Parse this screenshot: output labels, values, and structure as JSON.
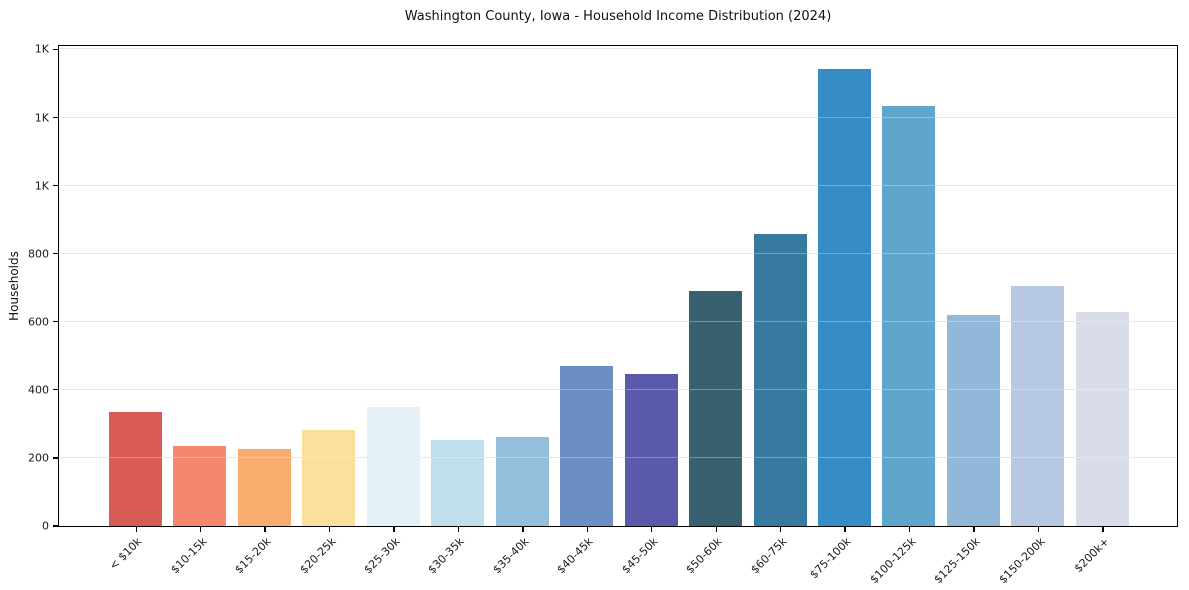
{
  "chart_data": {
    "type": "bar",
    "title": "Washington County, Iowa - Household Income Distribution (2024)",
    "xlabel": "",
    "ylabel": "Households",
    "categories": [
      "< $10k",
      "$10-15k",
      "$15-20k",
      "$20-25k",
      "$25-30k",
      "$30-35k",
      "$35-40k",
      "$40-45k",
      "$45-50k",
      "$50-60k",
      "$60-75k",
      "$75-100k",
      "$100-125k",
      "$125-150k",
      "$150-200k",
      "$200k+"
    ],
    "values": [
      336,
      235,
      226,
      281,
      349,
      252,
      261,
      471,
      448,
      690,
      857,
      1343,
      1235,
      620,
      705,
      628
    ],
    "bar_colors": [
      "#d85c55",
      "#f4886e",
      "#f8ad6f",
      "#fbdf9b",
      "#e3f0f6",
      "#c0dfec",
      "#93bfdd",
      "#6b8fc3",
      "#5a59aa",
      "#38606f",
      "#38799f",
      "#368dc5",
      "#5fa6cd",
      "#92b8d9",
      "#b7c9e2",
      "#d9dce9"
    ],
    "ylim": [
      0,
      1410
    ],
    "yticks": {
      "values": [
        0,
        200,
        400,
        600,
        800,
        1000,
        1200,
        1400
      ],
      "labels": [
        "0",
        "200",
        "400",
        "600",
        "800",
        "1K",
        "1K",
        "1K"
      ]
    },
    "grid": "horizontal",
    "gridline_color": "#dedede",
    "spine_color": "#000000",
    "legend": "none"
  }
}
